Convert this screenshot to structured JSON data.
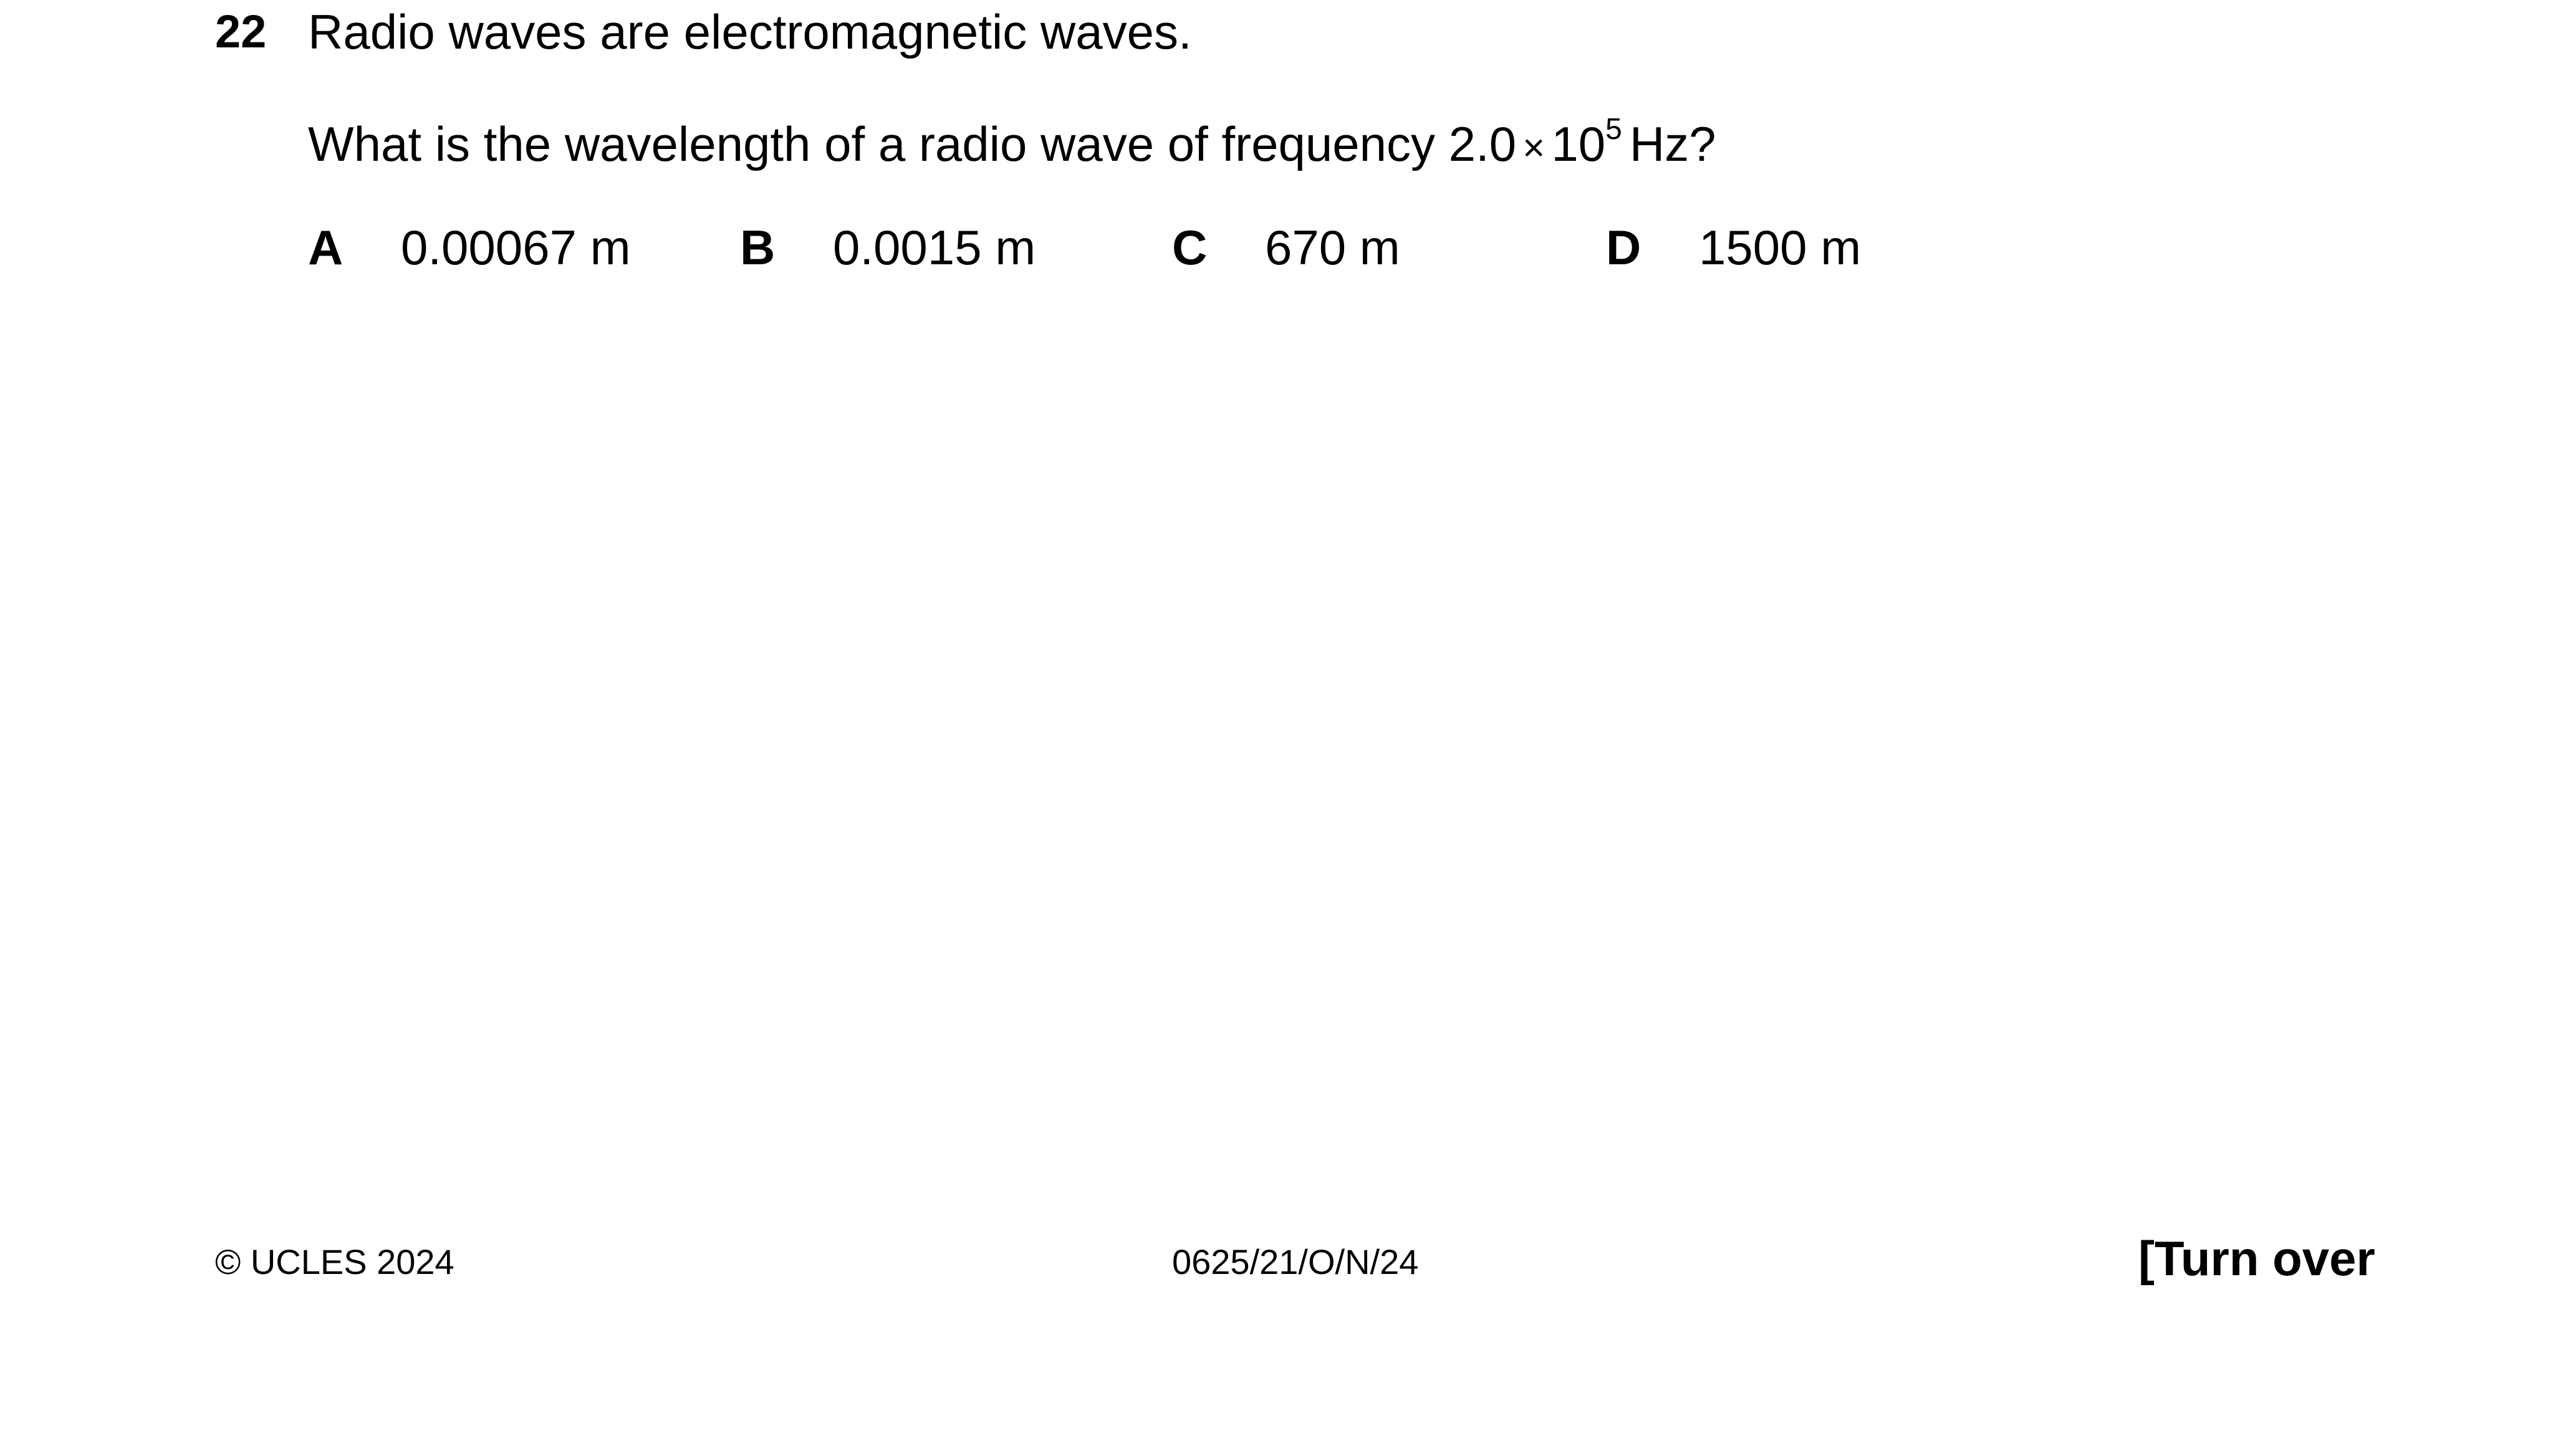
{
  "question": {
    "number": "22",
    "statement": "Radio waves are electromagnetic waves.",
    "prompt_prefix": "What is the wavelength of a radio wave of frequency 2.0",
    "times_symbol": "×",
    "base": "10",
    "exponent": "5",
    "unit_suffix": "Hz?"
  },
  "options": [
    {
      "letter": "A",
      "value": "0.00067 m"
    },
    {
      "letter": "B",
      "value": "0.0015 m"
    },
    {
      "letter": "C",
      "value": "670 m"
    },
    {
      "letter": "D",
      "value": "1500 m"
    }
  ],
  "footer": {
    "copyright": "© UCLES 2024",
    "paper_code": "0625/21/O/N/24",
    "turn_over": "[Turn over"
  }
}
